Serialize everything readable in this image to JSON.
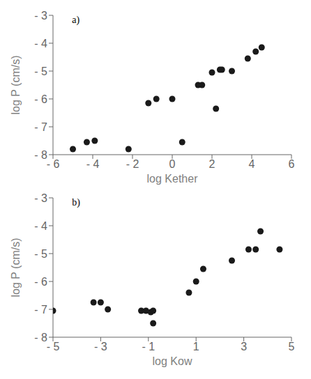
{
  "chart_data": [
    {
      "type": "scatter",
      "annotation": "a)",
      "xlabel": "log  Kether",
      "ylabel": "log P  (cm/s)",
      "xlim": [
        -6,
        6
      ],
      "ylim": [
        -8,
        -3
      ],
      "xticks": [
        {
          "value": -6,
          "label": "- 6"
        },
        {
          "value": -4,
          "label": "- 4"
        },
        {
          "value": -2,
          "label": "- 2"
        },
        0,
        2,
        4,
        6
      ],
      "yticks": [
        {
          "value": -8,
          "label": "- 8"
        },
        {
          "value": -7,
          "label": "- 7"
        },
        {
          "value": -6,
          "label": "- 6"
        },
        {
          "value": -5,
          "label": "- 5"
        },
        {
          "value": -4,
          "label": "- 4"
        },
        {
          "value": -3,
          "label": "- 3"
        }
      ],
      "x": [
        -5.0,
        -4.3,
        -3.9,
        -2.2,
        -1.2,
        -0.8,
        0.0,
        0.5,
        1.3,
        1.5,
        2.0,
        2.2,
        2.4,
        2.5,
        3.0,
        3.8,
        4.2,
        4.5
      ],
      "values": [
        -7.8,
        -7.55,
        -7.5,
        -7.8,
        -6.15,
        -6.0,
        -6.0,
        -7.55,
        -5.5,
        -5.5,
        -5.05,
        -6.35,
        -4.95,
        -4.95,
        -5.0,
        -4.55,
        -4.3,
        -4.15
      ],
      "color": "#1a1a1a",
      "grid": false
    },
    {
      "type": "scatter",
      "annotation": "b)",
      "xlabel": "log  Kow",
      "ylabel": "log P  (cm/s)",
      "xlim": [
        -5,
        5
      ],
      "ylim": [
        -8,
        -3
      ],
      "xticks": [
        {
          "value": -5,
          "label": "- 5"
        },
        {
          "value": -3,
          "label": "- 3"
        },
        {
          "value": -1,
          "label": "- 1"
        },
        1,
        3,
        5
      ],
      "yticks": [
        {
          "value": -8,
          "label": "- 8"
        },
        {
          "value": -7,
          "label": "- 7"
        },
        {
          "value": -6,
          "label": "- 6"
        },
        {
          "value": -5,
          "label": "- 5"
        },
        {
          "value": -4,
          "label": "- 4"
        },
        {
          "value": -3,
          "label": "- 3"
        }
      ],
      "x": [
        -5.0,
        -3.3,
        -3.0,
        -2.7,
        -1.3,
        -1.1,
        -0.9,
        -0.8,
        -0.8,
        0.7,
        1.0,
        1.3,
        2.5,
        3.2,
        3.5,
        3.7,
        4.5
      ],
      "values": [
        -7.05,
        -6.75,
        -6.75,
        -7.0,
        -7.05,
        -7.05,
        -7.1,
        -7.5,
        -7.05,
        -6.4,
        -6.0,
        -5.55,
        -5.25,
        -4.85,
        -4.85,
        -4.2,
        -4.85
      ],
      "color": "#1a1a1a",
      "grid": false
    }
  ]
}
